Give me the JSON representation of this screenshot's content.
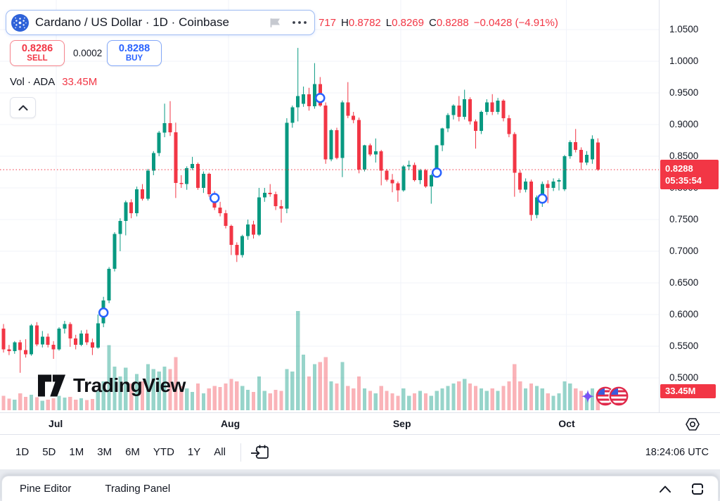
{
  "header": {
    "symbol_title": "Cardano / US Dollar · 1D · Coinbase",
    "ohlc": {
      "open_partial": "717",
      "high_label": "H",
      "high": "0.8782",
      "low_label": "L",
      "low": "0.8269",
      "close_label": "C",
      "close": "0.8288",
      "change": "−0.0428 (−4.91%)"
    },
    "sell_button": {
      "price": "0.8286",
      "label": "SELL"
    },
    "spread": "0.0002",
    "buy_button": {
      "price": "0.8288",
      "label": "BUY"
    },
    "volume_row": {
      "label": "Vol · ADA",
      "value": "33.45M"
    }
  },
  "watermark": {
    "text": "TradingView"
  },
  "price_scale": {
    "last_price": "0.8288",
    "countdown": "05:35:54",
    "volume_label": "33.45M"
  },
  "toolbar": {
    "ranges": [
      "1D",
      "5D",
      "1M",
      "3M",
      "6M",
      "YTD",
      "1Y",
      "All"
    ],
    "clock": "18:24:06 UTC"
  },
  "footer": {
    "pine_editor": "Pine Editor",
    "trading_panel": "Trading Panel"
  },
  "colors": {
    "up": "#089981",
    "down": "#f23645",
    "vol_up": "rgba(8,153,129,0.42)",
    "vol_down": "rgba(242,54,69,0.38)",
    "grid": "#f0f3fa",
    "marker": "#2962ff",
    "label_bg": "#f23645",
    "buy": "#2962ff",
    "sell": "#f23645"
  },
  "chart_data": {
    "type": "candlestick",
    "symbol": "Cardano / US Dollar",
    "exchange": "Coinbase",
    "interval": "1D",
    "title": "Cardano / US Dollar · 1D · Coinbase",
    "y_axis": {
      "ticks": [
        1.05,
        1.0,
        0.95,
        0.9,
        0.85,
        0.8,
        0.75,
        0.7,
        0.65,
        0.6,
        0.55,
        0.5
      ],
      "format_decimals": 4
    },
    "x_axis": {
      "month_ticks": [
        {
          "label": "Jul",
          "index": 9.5
        },
        {
          "label": "Aug",
          "index": 40.5
        },
        {
          "label": "Sep",
          "index": 71.5
        },
        {
          "label": "Oct",
          "index": 101.3
        }
      ]
    },
    "current_price": 0.8288,
    "countdown": "05:35:54",
    "last_volume_millions": 33.45,
    "volume_unit": "M",
    "markers": [
      {
        "index": 18,
        "price": 0.603
      },
      {
        "index": 38,
        "price": 0.784
      },
      {
        "index": 57,
        "price": 0.942
      },
      {
        "index": 78,
        "price": 0.824
      },
      {
        "index": 97,
        "price": 0.783
      }
    ],
    "candle_fields": [
      "open",
      "high",
      "low",
      "close",
      "volume_millions"
    ],
    "candles": [
      [
        0.578,
        0.585,
        0.54,
        0.545,
        30
      ],
      [
        0.545,
        0.552,
        0.536,
        0.542,
        24
      ],
      [
        0.542,
        0.558,
        0.538,
        0.556,
        22
      ],
      [
        0.556,
        0.56,
        0.508,
        0.544,
        35
      ],
      [
        0.544,
        0.561,
        0.532,
        0.537,
        28
      ],
      [
        0.537,
        0.585,
        0.535,
        0.583,
        32
      ],
      [
        0.583,
        0.588,
        0.55,
        0.553,
        27
      ],
      [
        0.553,
        0.574,
        0.548,
        0.565,
        20
      ],
      [
        0.565,
        0.57,
        0.548,
        0.552,
        22
      ],
      [
        0.552,
        0.558,
        0.53,
        0.545,
        25
      ],
      [
        0.545,
        0.58,
        0.543,
        0.578,
        30
      ],
      [
        0.578,
        0.59,
        0.57,
        0.585,
        26
      ],
      [
        0.585,
        0.588,
        0.549,
        0.562,
        28
      ],
      [
        0.562,
        0.568,
        0.545,
        0.552,
        22
      ],
      [
        0.552,
        0.575,
        0.55,
        0.57,
        25
      ],
      [
        0.57,
        0.576,
        0.552,
        0.556,
        21
      ],
      [
        0.556,
        0.562,
        0.536,
        0.548,
        23
      ],
      [
        0.548,
        0.6,
        0.546,
        0.586,
        40
      ],
      [
        0.586,
        0.628,
        0.58,
        0.622,
        60
      ],
      [
        0.622,
        0.675,
        0.618,
        0.672,
        135
      ],
      [
        0.672,
        0.73,
        0.668,
        0.727,
        90
      ],
      [
        0.727,
        0.752,
        0.7,
        0.748,
        70
      ],
      [
        0.748,
        0.78,
        0.725,
        0.777,
        88
      ],
      [
        0.777,
        0.782,
        0.752,
        0.76,
        55
      ],
      [
        0.76,
        0.802,
        0.755,
        0.798,
        75
      ],
      [
        0.798,
        0.806,
        0.78,
        0.783,
        60
      ],
      [
        0.783,
        0.83,
        0.78,
        0.827,
        95
      ],
      [
        0.827,
        0.858,
        0.82,
        0.855,
        85
      ],
      [
        0.855,
        0.89,
        0.85,
        0.887,
        80
      ],
      [
        0.887,
        0.933,
        0.88,
        0.902,
        90
      ],
      [
        0.902,
        0.937,
        0.882,
        0.888,
        85
      ],
      [
        0.888,
        0.903,
        0.784,
        0.808,
        110
      ],
      [
        0.808,
        0.82,
        0.8,
        0.806,
        50
      ],
      [
        0.806,
        0.834,
        0.797,
        0.831,
        45
      ],
      [
        0.831,
        0.849,
        0.828,
        0.838,
        38
      ],
      [
        0.838,
        0.84,
        0.797,
        0.8,
        55
      ],
      [
        0.8,
        0.826,
        0.792,
        0.822,
        35
      ],
      [
        0.822,
        0.824,
        0.786,
        0.79,
        45
      ],
      [
        0.79,
        0.795,
        0.765,
        0.769,
        50
      ],
      [
        0.769,
        0.778,
        0.755,
        0.76,
        48
      ],
      [
        0.76,
        0.765,
        0.736,
        0.74,
        55
      ],
      [
        0.74,
        0.742,
        0.694,
        0.71,
        65
      ],
      [
        0.71,
        0.714,
        0.683,
        0.694,
        60
      ],
      [
        0.694,
        0.726,
        0.69,
        0.724,
        50
      ],
      [
        0.724,
        0.75,
        0.718,
        0.742,
        42
      ],
      [
        0.742,
        0.748,
        0.72,
        0.726,
        38
      ],
      [
        0.726,
        0.8,
        0.724,
        0.785,
        70
      ],
      [
        0.785,
        0.8,
        0.778,
        0.792,
        40
      ],
      [
        0.792,
        0.806,
        0.786,
        0.79,
        35
      ],
      [
        0.79,
        0.794,
        0.765,
        0.771,
        42
      ],
      [
        0.771,
        0.781,
        0.745,
        0.767,
        40
      ],
      [
        0.767,
        0.91,
        0.76,
        0.903,
        85
      ],
      [
        0.903,
        0.93,
        0.895,
        0.927,
        80
      ],
      [
        0.927,
        1.021,
        0.905,
        0.945,
        205
      ],
      [
        0.933,
        0.96,
        0.928,
        0.948,
        115
      ],
      [
        0.948,
        0.958,
        0.922,
        0.929,
        70
      ],
      [
        0.929,
        0.997,
        0.925,
        0.964,
        95
      ],
      [
        0.964,
        0.975,
        0.928,
        0.93,
        100
      ],
      [
        0.93,
        0.935,
        0.838,
        0.845,
        110
      ],
      [
        0.845,
        0.893,
        0.842,
        0.891,
        60
      ],
      [
        0.891,
        0.895,
        0.845,
        0.847,
        55
      ],
      [
        0.847,
        0.938,
        0.817,
        0.935,
        100
      ],
      [
        0.935,
        0.967,
        0.91,
        0.914,
        50
      ],
      [
        0.914,
        0.92,
        0.902,
        0.907,
        45
      ],
      [
        0.907,
        0.911,
        0.823,
        0.829,
        70
      ],
      [
        0.829,
        0.868,
        0.826,
        0.867,
        45
      ],
      [
        0.867,
        0.87,
        0.85,
        0.853,
        40
      ],
      [
        0.853,
        0.878,
        0.84,
        0.858,
        35
      ],
      [
        0.858,
        0.86,
        0.804,
        0.827,
        50
      ],
      [
        0.827,
        0.83,
        0.81,
        0.813,
        40
      ],
      [
        0.813,
        0.822,
        0.793,
        0.807,
        35
      ],
      [
        0.807,
        0.81,
        0.778,
        0.796,
        30
      ],
      [
        0.796,
        0.836,
        0.794,
        0.834,
        45
      ],
      [
        0.834,
        0.843,
        0.828,
        0.836,
        30
      ],
      [
        0.836,
        0.84,
        0.81,
        0.812,
        35
      ],
      [
        0.812,
        0.83,
        0.806,
        0.828,
        40
      ],
      [
        0.828,
        0.83,
        0.8,
        0.802,
        35
      ],
      [
        0.802,
        0.822,
        0.775,
        0.82,
        30
      ],
      [
        0.82,
        0.868,
        0.818,
        0.867,
        40
      ],
      [
        0.867,
        0.895,
        0.858,
        0.894,
        45
      ],
      [
        0.894,
        0.918,
        0.888,
        0.915,
        50
      ],
      [
        0.915,
        0.932,
        0.908,
        0.93,
        55
      ],
      [
        0.93,
        0.945,
        0.905,
        0.912,
        60
      ],
      [
        0.912,
        0.955,
        0.908,
        0.94,
        65
      ],
      [
        0.94,
        0.943,
        0.9,
        0.905,
        55
      ],
      [
        0.905,
        0.908,
        0.862,
        0.89,
        50
      ],
      [
        0.89,
        0.922,
        0.885,
        0.92,
        45
      ],
      [
        0.92,
        0.94,
        0.915,
        0.935,
        40
      ],
      [
        0.935,
        0.948,
        0.915,
        0.92,
        45
      ],
      [
        0.92,
        0.942,
        0.916,
        0.938,
        40
      ],
      [
        0.938,
        0.94,
        0.905,
        0.91,
        50
      ],
      [
        0.91,
        0.915,
        0.88,
        0.885,
        60
      ],
      [
        0.885,
        0.888,
        0.786,
        0.824,
        95
      ],
      [
        0.824,
        0.828,
        0.792,
        0.797,
        60
      ],
      [
        0.797,
        0.815,
        0.793,
        0.81,
        45
      ],
      [
        0.81,
        0.813,
        0.748,
        0.757,
        55
      ],
      [
        0.757,
        0.788,
        0.752,
        0.785,
        50
      ],
      [
        0.785,
        0.81,
        0.77,
        0.806,
        45
      ],
      [
        0.806,
        0.812,
        0.776,
        0.8,
        35
      ],
      [
        0.8,
        0.815,
        0.795,
        0.81,
        30
      ],
      [
        0.81,
        0.815,
        0.796,
        0.812,
        35
      ],
      [
        0.798,
        0.852,
        0.795,
        0.85,
        60
      ],
      [
        0.85,
        0.875,
        0.846,
        0.872,
        55
      ],
      [
        0.872,
        0.893,
        0.856,
        0.86,
        45
      ],
      [
        0.86,
        0.864,
        0.828,
        0.84,
        40
      ],
      [
        0.84,
        0.858,
        0.836,
        0.852,
        35
      ],
      [
        0.845,
        0.883,
        0.838,
        0.877,
        45
      ],
      [
        0.8717,
        0.8782,
        0.8269,
        0.8288,
        33.45
      ]
    ]
  }
}
